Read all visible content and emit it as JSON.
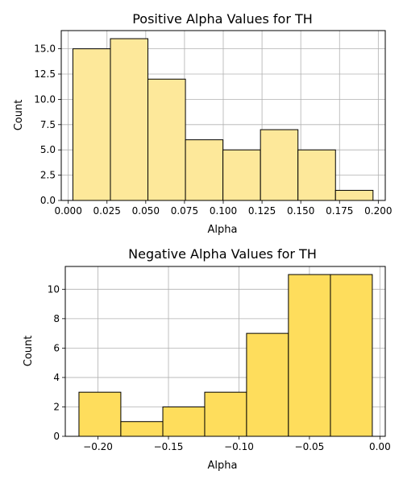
{
  "chart_data": [
    {
      "type": "bar",
      "title": "Positive Alpha Values for TH",
      "xlabel": "Alpha",
      "ylabel": "Count",
      "xlim": [
        -0.0045,
        0.2045
      ],
      "ylim": [
        0,
        16.8
      ],
      "grid": true,
      "bar_color": "#fde89a",
      "edge_color": "#000000",
      "bins": [
        {
          "x0": 0.003,
          "x1": 0.0272,
          "count": 15
        },
        {
          "x0": 0.0272,
          "x1": 0.0514,
          "count": 16
        },
        {
          "x0": 0.0514,
          "x1": 0.0756,
          "count": 12
        },
        {
          "x0": 0.0756,
          "x1": 0.0998,
          "count": 6
        },
        {
          "x0": 0.0998,
          "x1": 0.124,
          "count": 5
        },
        {
          "x0": 0.124,
          "x1": 0.1482,
          "count": 7
        },
        {
          "x0": 0.1482,
          "x1": 0.1724,
          "count": 5
        },
        {
          "x0": 0.1724,
          "x1": 0.1966,
          "count": 1
        }
      ],
      "xticks": [
        0.0,
        0.025,
        0.05,
        0.075,
        0.1,
        0.125,
        0.15,
        0.175,
        0.2
      ],
      "xtick_labels": [
        "0.000",
        "0.025",
        "0.050",
        "0.075",
        "0.100",
        "0.125",
        "0.150",
        "0.175",
        "0.200"
      ],
      "yticks": [
        0.0,
        2.5,
        5.0,
        7.5,
        10.0,
        12.5,
        15.0
      ],
      "ytick_labels": [
        "0.0",
        "2.5",
        "5.0",
        "7.5",
        "10.0",
        "12.5",
        "15.0"
      ]
    },
    {
      "type": "bar",
      "title": "Negative Alpha Values for TH",
      "xlabel": "Alpha",
      "ylabel": "Count",
      "xlim": [
        -0.2232,
        0.0038
      ],
      "ylim": [
        0,
        11.55
      ],
      "grid": true,
      "bar_color": "#fedd5c",
      "edge_color": "#000000",
      "bins": [
        {
          "x0": -0.2135,
          "x1": -0.1838,
          "count": 3
        },
        {
          "x0": -0.1838,
          "x1": -0.154,
          "count": 1
        },
        {
          "x0": -0.154,
          "x1": -0.1243,
          "count": 2
        },
        {
          "x0": -0.1243,
          "x1": -0.0946,
          "count": 3
        },
        {
          "x0": -0.0946,
          "x1": -0.0649,
          "count": 7
        },
        {
          "x0": -0.0649,
          "x1": -0.0351,
          "count": 11
        },
        {
          "x0": -0.0351,
          "x1": -0.0054,
          "count": 11
        }
      ],
      "xticks": [
        -0.2,
        -0.15,
        -0.1,
        -0.05,
        0.0
      ],
      "xtick_labels": [
        "−0.20",
        "−0.15",
        "−0.10",
        "−0.05",
        "0.00"
      ],
      "yticks": [
        0,
        2,
        4,
        6,
        8,
        10
      ],
      "ytick_labels": [
        "0",
        "2",
        "4",
        "6",
        "8",
        "10"
      ]
    }
  ]
}
